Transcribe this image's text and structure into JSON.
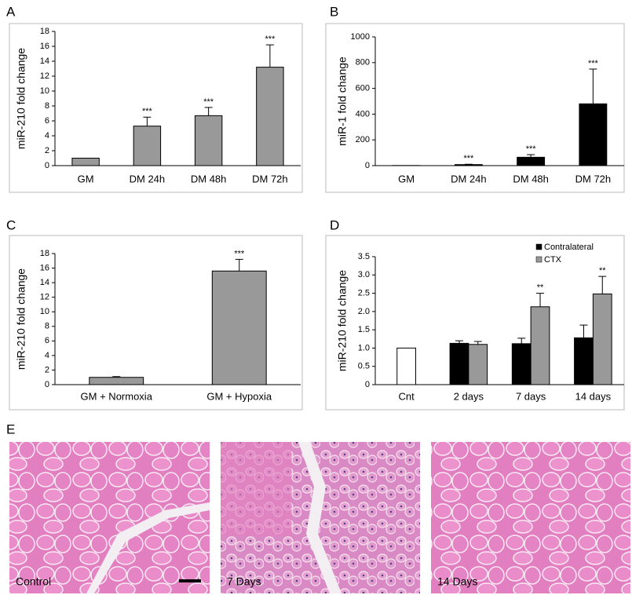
{
  "chart_data": [
    {
      "type": "bar",
      "panel": "A",
      "ylabel": "miR-210 fold change",
      "categories": [
        "GM",
        "DM 24h",
        "DM 48h",
        "DM 72h"
      ],
      "values": [
        1.0,
        5.3,
        6.7,
        13.2
      ],
      "errors": [
        null,
        1.2,
        1.1,
        3.0
      ],
      "annotations": [
        null,
        "***",
        "***",
        "***"
      ],
      "color": "#999999",
      "ylim": [
        0,
        18
      ],
      "yticks": [
        0,
        2,
        4,
        6,
        8,
        10,
        12,
        14,
        16,
        18
      ]
    },
    {
      "type": "bar",
      "panel": "B",
      "ylabel": "miR-1 fold change",
      "categories": [
        "GM",
        "DM 24h",
        "DM 48h",
        "DM 72h"
      ],
      "values": [
        1,
        8,
        65,
        480
      ],
      "errors": [
        null,
        3,
        20,
        270
      ],
      "annotations": [
        null,
        "***",
        "***",
        "***"
      ],
      "color": "#000000",
      "ylim": [
        0,
        1000
      ],
      "yticks": [
        0,
        200,
        400,
        600,
        800,
        1000
      ]
    },
    {
      "type": "bar",
      "panel": "C",
      "ylabel": "miR-210 fold change",
      "categories": [
        "GM + Normoxia",
        "GM + Hypoxia"
      ],
      "values": [
        1.0,
        15.6
      ],
      "errors": [
        0.1,
        1.6
      ],
      "annotations": [
        null,
        "***"
      ],
      "color": "#999999",
      "ylim": [
        0,
        18
      ],
      "yticks": [
        0,
        2,
        4,
        6,
        8,
        10,
        12,
        14,
        16,
        18
      ]
    },
    {
      "type": "grouped_bar",
      "panel": "D",
      "ylabel": "miR-210 fold change",
      "categories": [
        "Cnt",
        "2 days",
        "7 days",
        "14 days"
      ],
      "legend": "upper right",
      "series": [
        {
          "name": "Contralateral",
          "color": "#000000",
          "values": [
            null,
            1.13,
            1.12,
            1.28
          ],
          "errors": [
            null,
            0.07,
            0.15,
            0.35
          ],
          "annotations": [
            null,
            null,
            null,
            null
          ]
        },
        {
          "name": "CTX",
          "color": "#999999",
          "values": [
            null,
            1.1,
            2.13,
            2.48
          ],
          "errors": [
            null,
            0.08,
            0.37,
            0.48
          ],
          "annotations": [
            null,
            null,
            "**",
            "**"
          ]
        },
        {
          "color": "#ffffff",
          "values": [
            1.0,
            null,
            null,
            null
          ],
          "errors": [
            null,
            null,
            null,
            null
          ],
          "annotations": [
            null,
            null,
            null,
            null
          ]
        }
      ],
      "ylim": [
        0,
        3.5
      ],
      "yticks": [
        0,
        {
          "value": 0.5,
          "label": "0.5"
        },
        {
          "value": 1,
          "label": "1.0"
        },
        {
          "value": 1.5,
          "label": "1.5"
        },
        {
          "value": 2,
          "label": "2.0"
        },
        {
          "value": 2.5,
          "label": "2.5"
        },
        {
          "value": 3,
          "label": "3.0"
        },
        {
          "value": 3.5,
          "label": "3.5"
        }
      ]
    }
  ],
  "panel_e": {
    "label": "E",
    "images": [
      "Control",
      "7 Days",
      "14 Days"
    ]
  }
}
